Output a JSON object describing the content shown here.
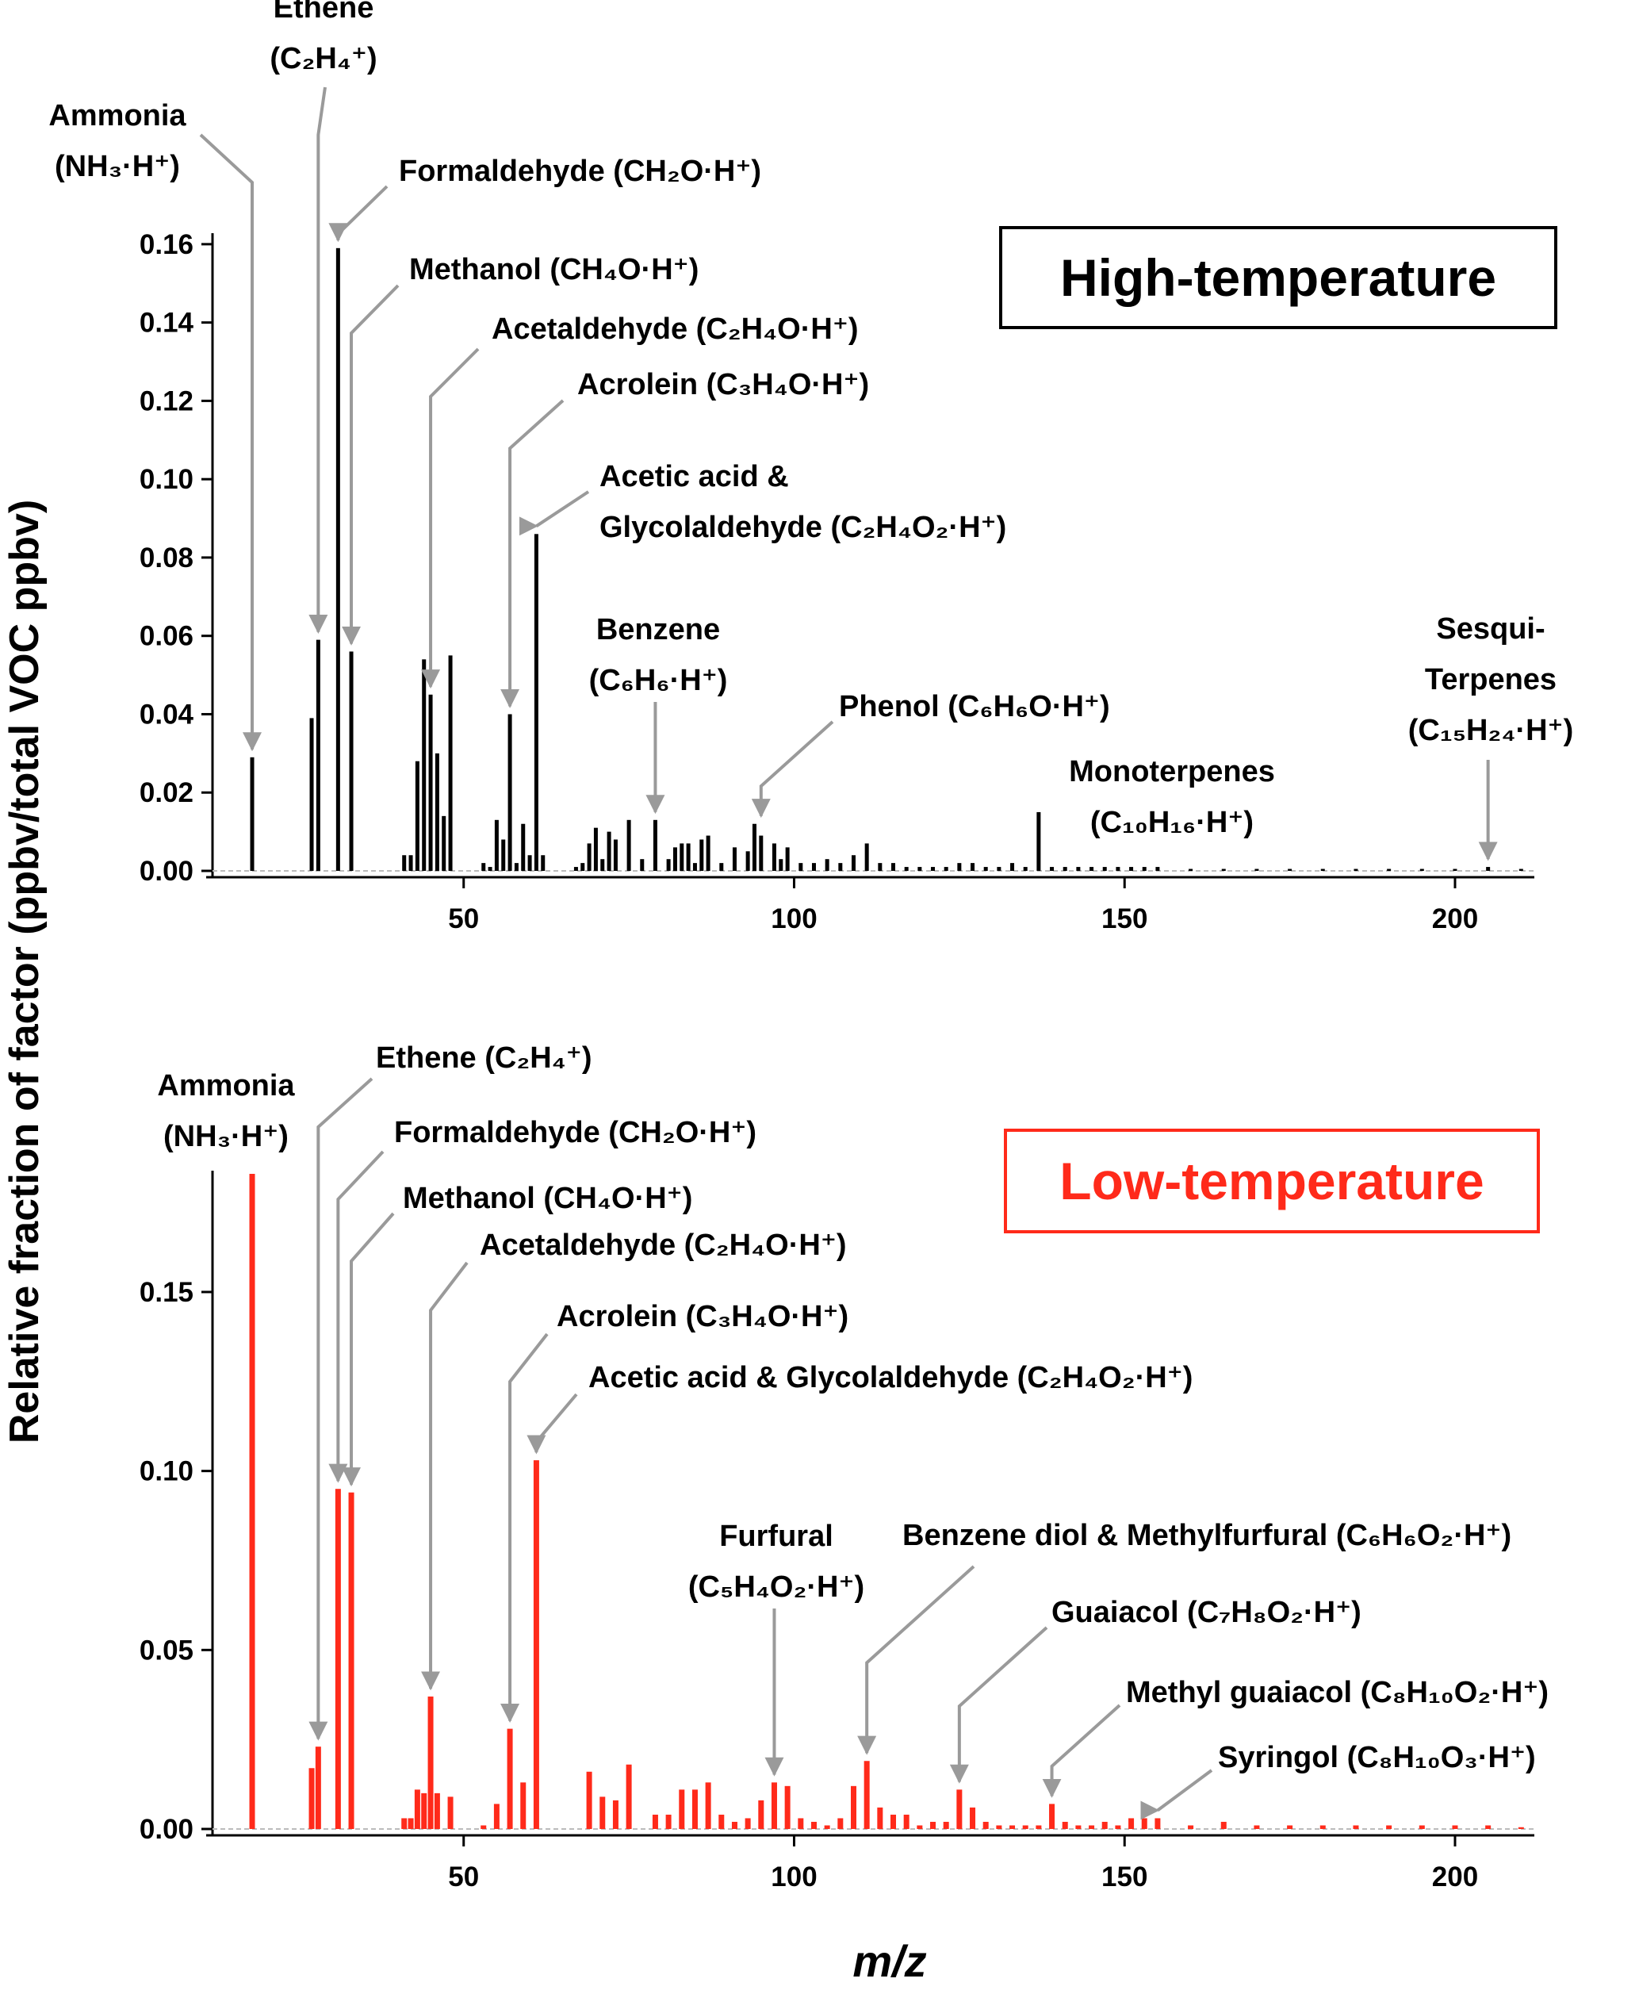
{
  "chart_data": {
    "ylabel": "Relative fraction of factor (ppbv/total VOC ppbv)",
    "xlabel": "m/z",
    "panels": [
      {
        "type": "bar",
        "title": "High-temperature",
        "color": "#000000",
        "xlim": [
          12,
          212
        ],
        "ylim": [
          0,
          0.162
        ],
        "yticks": [
          "0.00",
          "0.02",
          "0.04",
          "0.06",
          "0.08",
          "0.10",
          "0.12",
          "0.14",
          "0.16"
        ],
        "ytick_values": [
          0,
          0.02,
          0.04,
          0.06,
          0.08,
          0.1,
          0.12,
          0.14,
          0.16
        ],
        "xticks": [
          "50",
          "100",
          "150",
          "200"
        ],
        "xtick_values": [
          50,
          100,
          150,
          200
        ],
        "x": [
          18,
          27,
          28,
          31,
          33,
          41,
          42,
          43,
          44,
          45,
          46,
          47,
          48,
          53,
          54,
          55,
          56,
          57,
          58,
          59,
          60,
          61,
          62,
          67,
          68,
          69,
          70,
          71,
          72,
          73,
          75,
          77,
          79,
          81,
          82,
          83,
          84,
          85,
          86,
          87,
          89,
          91,
          93,
          94,
          95,
          97,
          98,
          99,
          101,
          103,
          105,
          107,
          109,
          111,
          113,
          115,
          117,
          119,
          121,
          123,
          125,
          127,
          129,
          131,
          133,
          135,
          137,
          139,
          141,
          143,
          145,
          147,
          149,
          151,
          153,
          155,
          160,
          165,
          170,
          175,
          180,
          185,
          190,
          195,
          200,
          205,
          210
        ],
        "values": [
          0.029,
          0.039,
          0.059,
          0.159,
          0.056,
          0.004,
          0.004,
          0.028,
          0.054,
          0.045,
          0.03,
          0.014,
          0.055,
          0.002,
          0.001,
          0.013,
          0.008,
          0.04,
          0.002,
          0.012,
          0.004,
          0.086,
          0.004,
          0.001,
          0.002,
          0.007,
          0.011,
          0.003,
          0.01,
          0.008,
          0.013,
          0.003,
          0.013,
          0.003,
          0.006,
          0.007,
          0.007,
          0.002,
          0.008,
          0.009,
          0.002,
          0.006,
          0.005,
          0.012,
          0.009,
          0.007,
          0.003,
          0.006,
          0.002,
          0.002,
          0.003,
          0.002,
          0.004,
          0.007,
          0.002,
          0.002,
          0.001,
          0.001,
          0.001,
          0.001,
          0.002,
          0.002,
          0.001,
          0.001,
          0.002,
          0.001,
          0.015,
          0.001,
          0.001,
          0.001,
          0.001,
          0.001,
          0.001,
          0.001,
          0.001,
          0.001,
          0.0005,
          0.0005,
          0.0005,
          0.0005,
          0.0005,
          0.0005,
          0.0005,
          0.0005,
          0.0005,
          0.001,
          0.0005
        ],
        "annotations": [
          {
            "text": "Ammonia",
            "text2": "(NH₃·H⁺)",
            "x": 18,
            "y": 0.029
          },
          {
            "text": "Ethene",
            "text2": "(C₂H₄⁺)",
            "x": 28,
            "y": 0.059
          },
          {
            "text": "Formaldehyde (CH₂O·H⁺)",
            "text2": "",
            "x": 31,
            "y": 0.159
          },
          {
            "text": "Methanol (CH₄O·H⁺)",
            "text2": "",
            "x": 33,
            "y": 0.056
          },
          {
            "text": "Acetaldehyde (C₂H₄O·H⁺)",
            "text2": "",
            "x": 45,
            "y": 0.045
          },
          {
            "text": "Acrolein (C₃H₄O·H⁺)",
            "text2": "",
            "x": 57,
            "y": 0.04
          },
          {
            "text": "Acetic acid &",
            "text2": "Glycolaldehyde (C₂H₄O₂·H⁺)",
            "x": 61,
            "y": 0.086
          },
          {
            "text": "Benzene",
            "text2": "(C₆H₆·H⁺)",
            "x": 79,
            "y": 0.013
          },
          {
            "text": "Phenol (C₆H₆O·H⁺)",
            "text2": "",
            "x": 95,
            "y": 0.012
          },
          {
            "text": "Monoterpenes",
            "text2": "(C₁₀H₁₆·H⁺)",
            "x": 137,
            "y": 0.015
          },
          {
            "text": "Sesqui-",
            "text2": "Terpenes",
            "text3": "(C₁₅H₂₄·H⁺)",
            "x": 205,
            "y": 0.001
          }
        ]
      },
      {
        "type": "bar",
        "title": "Low-temperature",
        "color": "#ff2a1a",
        "xlim": [
          12,
          212
        ],
        "ylim": [
          0,
          0.183
        ],
        "yticks": [
          "0.00",
          "0.05",
          "0.10",
          "0.15"
        ],
        "ytick_values": [
          0,
          0.05,
          0.1,
          0.15
        ],
        "xticks": [
          "50",
          "100",
          "150",
          "200"
        ],
        "xtick_values": [
          50,
          100,
          150,
          200
        ],
        "x": [
          18,
          27,
          28,
          31,
          33,
          41,
          42,
          43,
          44,
          45,
          46,
          48,
          53,
          55,
          57,
          59,
          61,
          69,
          71,
          73,
          75,
          79,
          81,
          83,
          85,
          87,
          89,
          91,
          93,
          95,
          97,
          99,
          101,
          103,
          105,
          107,
          109,
          111,
          113,
          115,
          117,
          119,
          121,
          123,
          125,
          127,
          129,
          131,
          133,
          135,
          137,
          139,
          141,
          143,
          145,
          147,
          149,
          151,
          153,
          155,
          160,
          165,
          170,
          175,
          180,
          185,
          190,
          195,
          200,
          205,
          210
        ],
        "values": [
          0.183,
          0.017,
          0.023,
          0.095,
          0.094,
          0.003,
          0.003,
          0.011,
          0.01,
          0.037,
          0.01,
          0.009,
          0.001,
          0.007,
          0.028,
          0.013,
          0.103,
          0.016,
          0.009,
          0.008,
          0.018,
          0.004,
          0.004,
          0.011,
          0.011,
          0.013,
          0.004,
          0.002,
          0.003,
          0.008,
          0.013,
          0.012,
          0.003,
          0.002,
          0.001,
          0.003,
          0.012,
          0.019,
          0.006,
          0.004,
          0.004,
          0.001,
          0.002,
          0.002,
          0.011,
          0.006,
          0.002,
          0.001,
          0.001,
          0.001,
          0.001,
          0.007,
          0.002,
          0.001,
          0.001,
          0.002,
          0.001,
          0.003,
          0.003,
          0.003,
          0.001,
          0.002,
          0.001,
          0.001,
          0.001,
          0.001,
          0.001,
          0.001,
          0.001,
          0.001,
          0.0005
        ],
        "annotations": [
          {
            "text": "Ammonia",
            "text2": "(NH₃·H⁺)",
            "x": 18,
            "y": 0.183
          },
          {
            "text": "Ethene (C₂H₄⁺)",
            "text2": "",
            "x": 28,
            "y": 0.023
          },
          {
            "text": "Formaldehyde (CH₂O·H⁺)",
            "text2": "",
            "x": 31,
            "y": 0.095
          },
          {
            "text": "Methanol (CH₄O·H⁺)",
            "text2": "",
            "x": 33,
            "y": 0.094
          },
          {
            "text": "Acetaldehyde (C₂H₄O·H⁺)",
            "text2": "",
            "x": 45,
            "y": 0.037
          },
          {
            "text": "Acrolein (C₃H₄O·H⁺)",
            "text2": "",
            "x": 57,
            "y": 0.028
          },
          {
            "text": "Acetic acid & Glycolaldehyde (C₂H₄O₂·H⁺)",
            "text2": "",
            "x": 61,
            "y": 0.103
          },
          {
            "text": "Furfural",
            "text2": "(C₅H₄O₂·H⁺)",
            "x": 97,
            "y": 0.013
          },
          {
            "text": "Benzene diol & Methylfurfural (C₆H₆O₂·H⁺)",
            "text2": "",
            "x": 111,
            "y": 0.019
          },
          {
            "text": "Guaiacol (C₇H₈O₂·H⁺)",
            "text2": "",
            "x": 125,
            "y": 0.011
          },
          {
            "text": "Methyl guaiacol (C₈H₁₀O₂·H⁺)",
            "text2": "",
            "x": 139,
            "y": 0.007
          },
          {
            "text": "Syringol (C₈H₁₀O₃·H⁺)",
            "text2": "",
            "x": 155,
            "y": 0.003
          }
        ]
      }
    ]
  }
}
